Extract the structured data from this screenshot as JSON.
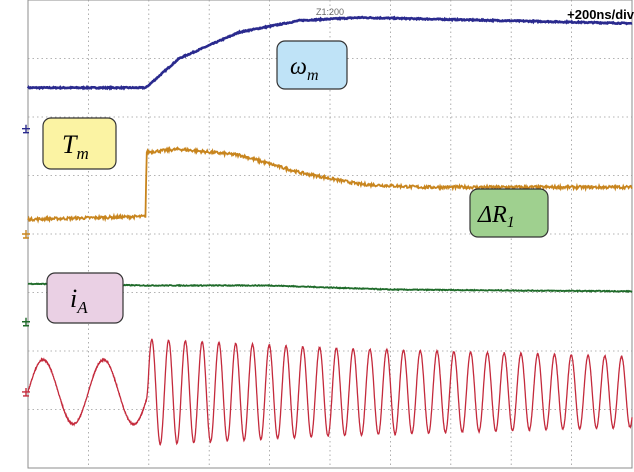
{
  "header": {
    "timebase": "+200ns/div",
    "trigger_readout": "Z1:200"
  },
  "traces": [
    {
      "id": "wm",
      "label": "ωm",
      "label_main": "ω",
      "label_sub": "m",
      "color": "#2a2a8e",
      "box_fill": "#bfe3f7"
    },
    {
      "id": "tm",
      "label": "Tm",
      "label_main": "T",
      "label_sub": "m",
      "color": "#c8851e",
      "box_fill": "#fbf3a3"
    },
    {
      "id": "dr",
      "label": "ΔR1",
      "label_main": "ΔR",
      "label_sub": "1",
      "color": "#1f6b2a",
      "box_fill": "#9fd08f"
    },
    {
      "id": "ia",
      "label": "iA",
      "label_main": "i",
      "label_sub": "A",
      "color": "#c42a3c",
      "box_fill": "#ead0e4"
    }
  ],
  "chart_data": {
    "type": "line",
    "title": "",
    "xlabel": "",
    "ylabel": "",
    "grid": true,
    "grid_divisions": {
      "x": 10,
      "y": 8
    },
    "x_unit": "div",
    "xlim": [
      0,
      10
    ],
    "step_time_div": 1.95,
    "series": [
      {
        "name": "ωm",
        "color": "#2a2a8e",
        "points": [
          [
            0,
            6.5
          ],
          [
            1.95,
            6.5
          ],
          [
            2.5,
            7.0
          ],
          [
            3.5,
            7.45
          ],
          [
            4.5,
            7.65
          ],
          [
            5.5,
            7.7
          ],
          [
            10,
            7.6
          ]
        ]
      },
      {
        "name": "Tm",
        "color": "#c8851e",
        "points": [
          [
            0,
            4.25
          ],
          [
            1.95,
            4.3
          ],
          [
            1.96,
            5.4
          ],
          [
            2.5,
            5.45
          ],
          [
            3.5,
            5.35
          ],
          [
            4.5,
            5.05
          ],
          [
            5.5,
            4.85
          ],
          [
            6.5,
            4.8
          ],
          [
            10,
            4.8
          ]
        ]
      },
      {
        "name": "ΔR1",
        "color": "#1f6b2a",
        "points": [
          [
            0,
            3.15
          ],
          [
            1.95,
            3.12
          ],
          [
            4,
            3.12
          ],
          [
            6,
            3.05
          ],
          [
            10,
            3.02
          ]
        ]
      },
      {
        "name": "iA",
        "color": "#c42a3c",
        "offset_div": 1.3,
        "amplitude_div": [
          [
            0,
            0.55
          ],
          [
            1.95,
            0.55
          ],
          [
            2.0,
            0.9
          ],
          [
            5,
            0.75
          ],
          [
            10,
            0.6
          ]
        ],
        "cycles_per_div": [
          [
            0,
            1.0
          ],
          [
            1.95,
            1.0
          ],
          [
            2.0,
            3.6
          ],
          [
            10,
            3.6
          ]
        ]
      }
    ],
    "ground_markers": [
      {
        "series": "ωm",
        "level_div": 5.8
      },
      {
        "series": "Tm",
        "level_div": 4.0
      },
      {
        "series": "ΔR1",
        "level_div": 2.5
      },
      {
        "series": "iA",
        "level_div": 1.3
      }
    ]
  }
}
